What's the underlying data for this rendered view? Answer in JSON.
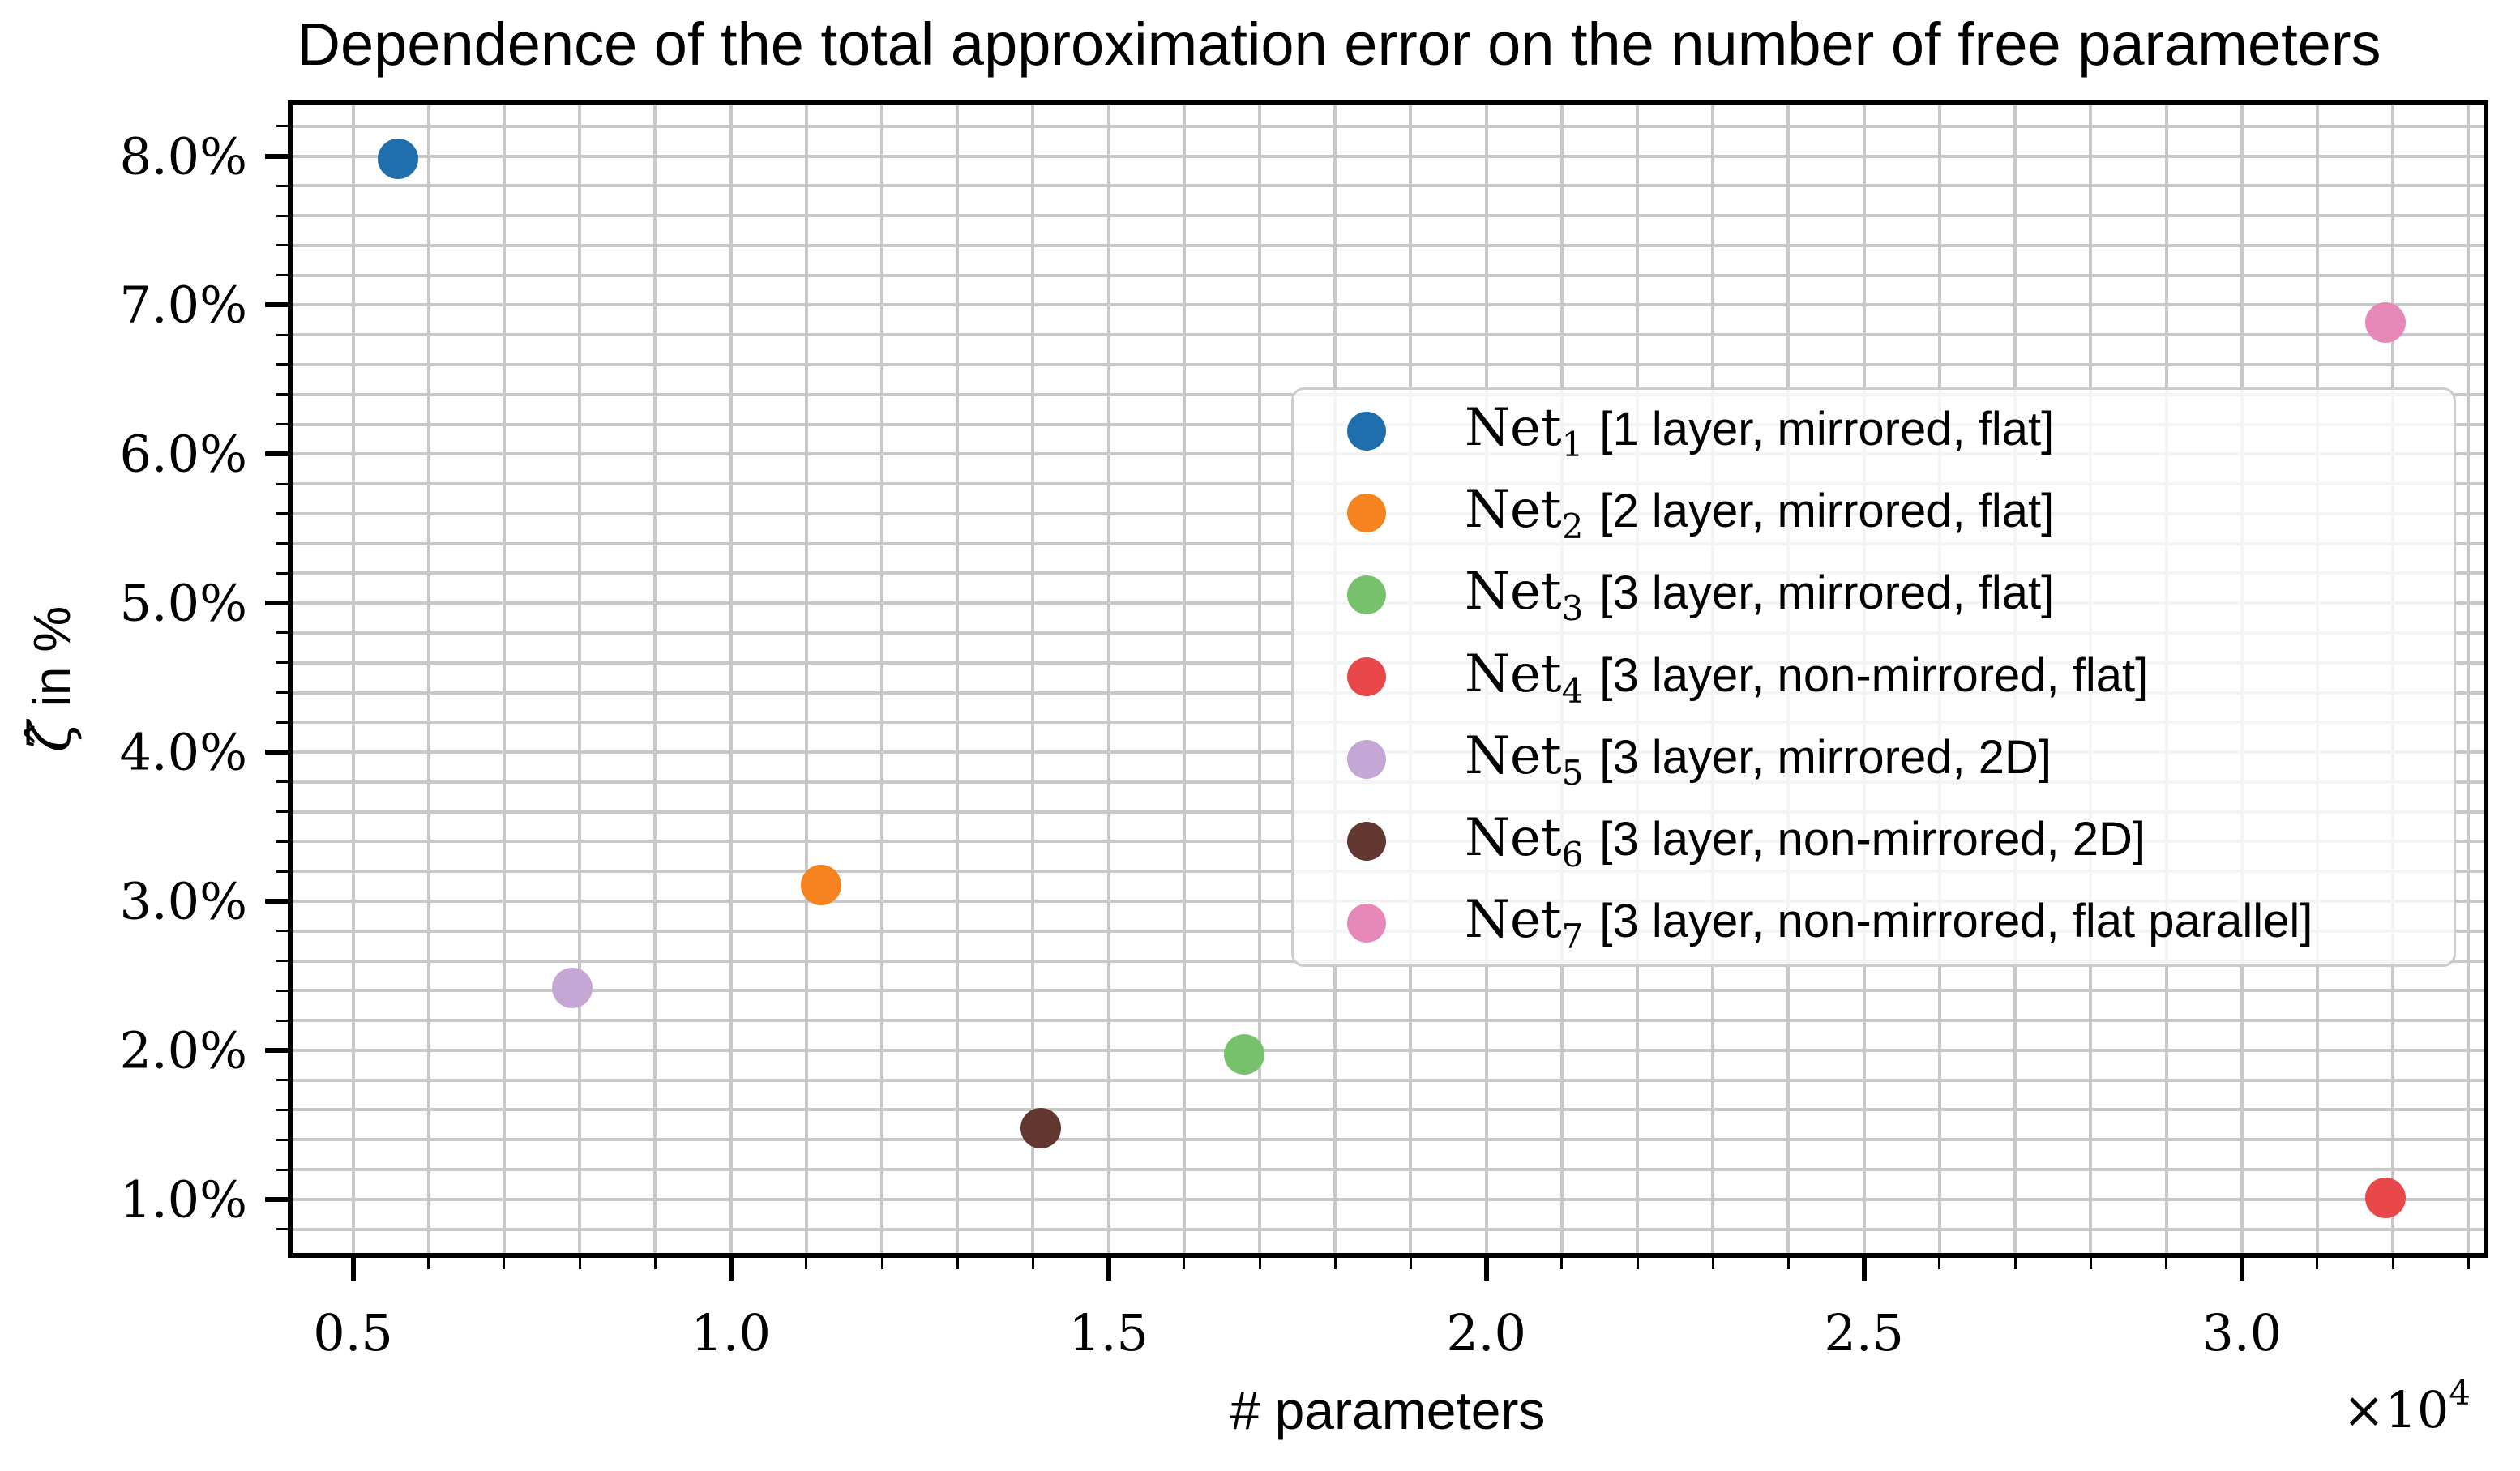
{
  "chart_data": {
    "type": "scatter",
    "title": "Dependence of the total approximation error on the number of free parameters",
    "xlabel": "# parameters",
    "ylabel": "ζ̂ in %",
    "ylabel_math": "ζ̂",
    "ylabel_rest": " in %",
    "x_offset_base": "×10",
    "x_offset_exp": "4",
    "x_units": "values in units of 10^4 parameters",
    "xlim": [
      0.42,
      3.32
    ],
    "ylim": [
      0.64,
      8.34
    ],
    "x_minor_step": 0.1,
    "y_minor_step": 0.2,
    "grid": true,
    "legend_position": "center-right",
    "x_ticks": [
      {
        "value": 0.5,
        "label": "0.5"
      },
      {
        "value": 1.0,
        "label": "1.0"
      },
      {
        "value": 1.5,
        "label": "1.5"
      },
      {
        "value": 2.0,
        "label": "2.0"
      },
      {
        "value": 2.5,
        "label": "2.5"
      },
      {
        "value": 3.0,
        "label": "3.0"
      }
    ],
    "y_ticks": [
      {
        "value": 1.0,
        "label": "1.0%"
      },
      {
        "value": 2.0,
        "label": "2.0%"
      },
      {
        "value": 3.0,
        "label": "3.0%"
      },
      {
        "value": 4.0,
        "label": "4.0%"
      },
      {
        "value": 5.0,
        "label": "5.0%"
      },
      {
        "value": 6.0,
        "label": "6.0%"
      },
      {
        "value": 7.0,
        "label": "7.0%"
      },
      {
        "value": 8.0,
        "label": "8.0%"
      }
    ],
    "series": [
      {
        "name_base": "Net",
        "name_sub": "1",
        "desc": "[1 layer, mirrored, flat]",
        "color": "#1f6fae",
        "x": 0.56,
        "y": 7.98
      },
      {
        "name_base": "Net",
        "name_sub": "2",
        "desc": "[2 layer, mirrored, flat]",
        "color": "#f5831f",
        "x": 1.12,
        "y": 3.11
      },
      {
        "name_base": "Net",
        "name_sub": "3",
        "desc": "[3 layer, mirrored, flat]",
        "color": "#78c16c",
        "x": 1.68,
        "y": 1.97
      },
      {
        "name_base": "Net",
        "name_sub": "4",
        "desc": "[3 layer, non-mirrored, flat]",
        "color": "#e9484b",
        "x": 3.19,
        "y": 1.01
      },
      {
        "name_base": "Net",
        "name_sub": "5",
        "desc": "[3 layer, mirrored, 2D]",
        "color": "#c4a7d5",
        "x": 0.79,
        "y": 2.42
      },
      {
        "name_base": "Net",
        "name_sub": "6",
        "desc": "[3 layer, non-mirrored, 2D]",
        "color": "#623730",
        "x": 1.41,
        "y": 1.48
      },
      {
        "name_base": "Net",
        "name_sub": "7",
        "desc": "[3 layer, non-mirrored, flat parallel]",
        "color": "#e689b9",
        "x": 3.19,
        "y": 6.88
      }
    ],
    "colors": {
      "grid": "#c8c8c8",
      "spine": "#000000",
      "legend_border": "#cccccc",
      "background": "#ffffff"
    }
  }
}
